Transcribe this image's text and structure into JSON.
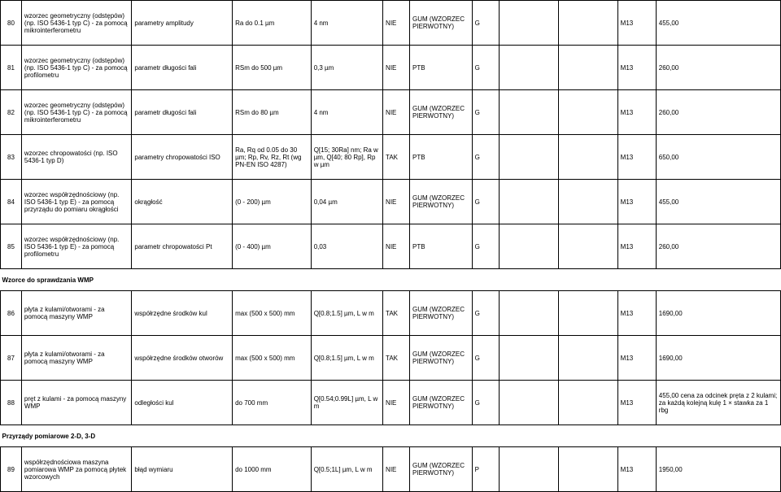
{
  "rows": [
    {
      "num": "80",
      "name": "wzorzec geometryczny (odstępów) (np. ISO 5436-1 typ C) - za pomocą mikrointerferometru",
      "param": "parametry amplitudy",
      "range": "Ra do 0.1 µm",
      "unc": "4 nm",
      "accr": "NIE",
      "trace": "GUM (WZORZEC PIERWOTNY)",
      "grp": "G",
      "center": "",
      "lab": "M13",
      "price": "455,00",
      "notes": ""
    },
    {
      "num": "81",
      "name": "wzorzec geometryczny (odstępów) (np. ISO 5436-1 typ C) - za pomocą profilometru",
      "param": "parametr długości fali",
      "range": "RSm do 500 µm",
      "unc": "0,3 µm",
      "accr": "NIE",
      "trace": "PTB",
      "grp": "G",
      "center": "",
      "lab": "M13",
      "price": "260,00",
      "notes": ""
    },
    {
      "num": "82",
      "name": "wzorzec geometryczny (odstępów) (np. ISO 5436-1 typ C) - za pomocą mikrointerferometru",
      "param": "parametr długości fali",
      "range": "RSm do 80 µm",
      "unc": "4 nm",
      "accr": "NIE",
      "trace": "GUM (WZORZEC PIERWOTNY)",
      "grp": "G",
      "center": "",
      "lab": "M13",
      "price": "260,00",
      "notes": ""
    },
    {
      "num": "83",
      "name": "wzorzec chropowatości (np. ISO 5436-1 typ D)",
      "param": "parametry chropowatości ISO",
      "range": "Ra, Rq od 0.05 do 30 µm; Rp, Rv, Rz, Rt (wg PN-EN ISO 4287)",
      "unc": "Q[15; 30Ra] nm; Ra w µm, Q[40; 80 Rp], Rp w µm",
      "accr": "TAK",
      "trace": "PTB",
      "grp": "G",
      "center": "",
      "lab": "M13",
      "price": "650,00",
      "notes": ""
    },
    {
      "num": "84",
      "name": "wzorzec współrzędnościowy (np. ISO 5436-1 typ E) - za pomocą przyrządu do pomiaru okrągłości",
      "param": "okrągłość",
      "range": "(0 - 200) µm",
      "unc": "0,04 µm",
      "accr": "NIE",
      "trace": "GUM (WZORZEC PIERWOTNY)",
      "grp": "G",
      "center": "",
      "lab": "M13",
      "price": "455,00",
      "notes": ""
    },
    {
      "num": "85",
      "name": "wzorzec współrzędnościowy (np. ISO 5436-1 typ E) - za pomocą profilometru",
      "param": "parametr chropowatości Pt",
      "range": "(0 - 400) µm",
      "unc": "0,03",
      "accr": "NIE",
      "trace": "PTB",
      "grp": "G",
      "center": "",
      "lab": "M13",
      "price": "260,00",
      "notes": ""
    }
  ],
  "section1": "Wzorce do sprawdzania WMP",
  "rows2": [
    {
      "num": "86",
      "name": "płyta z kulami/otworami - za pomocą maszyny WMP",
      "param": "współrzędne środków kul",
      "range": "max (500 x 500) mm",
      "unc": "Q[0.8;1.5] µm, L w m",
      "accr": "TAK",
      "trace": "GUM (WZORZEC PIERWOTNY)",
      "grp": "G",
      "center": "",
      "lab": "M13",
      "price": "1690,00",
      "notes": ""
    },
    {
      "num": "87",
      "name": "płyta z kulami/otworami - za pomocą maszyny WMP",
      "param": "współrzędne środków otworów",
      "range": "max (500 x 500) mm",
      "unc": "Q[0.8;1.5] µm, L w m",
      "accr": "TAK",
      "trace": "GUM (WZORZEC PIERWOTNY)",
      "grp": "G",
      "center": "",
      "lab": "M13",
      "price": "1690,00",
      "notes": ""
    },
    {
      "num": "88",
      "name": "pręt z kulami - za pomocą maszyny WMP",
      "param": "odległości kul",
      "range": "do 700 mm",
      "unc": "Q[0.54;0.99L] µm, L w m",
      "accr": "NIE",
      "trace": "GUM (WZORZEC PIERWOTNY)",
      "grp": "G",
      "center": "",
      "lab": "M13",
      "price": "455,00",
      "notes": "cena za odcinek pręta z 2 kulami; za każdą kolejną kulę 1 × stawka za 1 rbg"
    }
  ],
  "section2": "Przyrządy pomiarowe 2-D, 3-D",
  "rows3": [
    {
      "num": "89",
      "name": "współrzędnościowa maszyna pomiarowa WMP za pomocą płytek wzorcowych",
      "param": "błąd wymiaru",
      "range": "do 1000 mm",
      "unc": "Q[0.5;1L] µm, L w m",
      "accr": "NIE",
      "trace": "GUM (WZORZEC PIERWOTNY)",
      "grp": "P",
      "center": "",
      "lab": "M13",
      "price": "1950,00",
      "notes": ""
    }
  ]
}
